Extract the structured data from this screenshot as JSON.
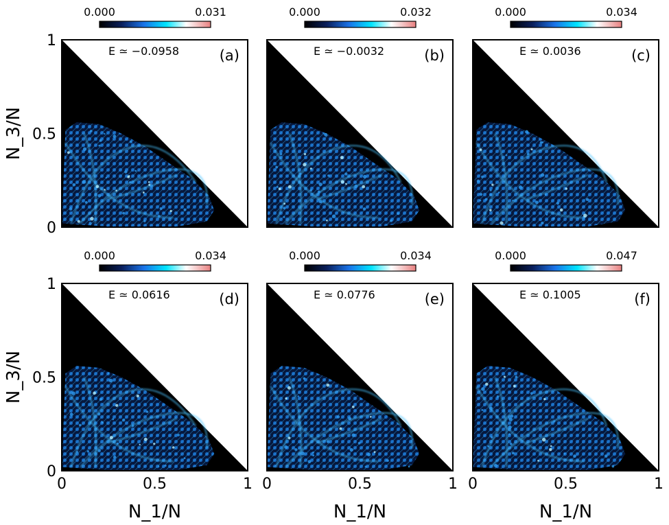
{
  "chart_data": {
    "type": "heatmap",
    "xlabel": "N_1/N",
    "ylabel": "N_3/N",
    "xlim": [
      0,
      1
    ],
    "ylim": [
      0,
      1
    ],
    "x_ticks": [
      "0",
      "0.5",
      "1"
    ],
    "y_ticks": [
      "0",
      "0.5",
      "1"
    ],
    "colormap": [
      "#000000",
      "#0a1f5c",
      "#1a73e8",
      "#00e5ff",
      "#ffffff",
      "#e88080"
    ],
    "panels": [
      {
        "label": "(a)",
        "energy": "E ≃ −0.0958",
        "colorbar_min": "0.000",
        "colorbar_max": "0.031"
      },
      {
        "label": "(b)",
        "energy": "E ≃ −0.0032",
        "colorbar_min": "0.000",
        "colorbar_max": "0.032"
      },
      {
        "label": "(c)",
        "energy": "E ≃ 0.0036",
        "colorbar_min": "0.000",
        "colorbar_max": "0.034"
      },
      {
        "label": "(d)",
        "energy": "E ≃ 0.0616",
        "colorbar_min": "0.000",
        "colorbar_max": "0.034"
      },
      {
        "label": "(e)",
        "energy": "E ≃ 0.0776",
        "colorbar_min": "0.000",
        "colorbar_max": "0.034"
      },
      {
        "label": "(f)",
        "energy": "E ≃ 0.1005",
        "colorbar_min": "0.000",
        "colorbar_max": "0.047"
      }
    ]
  }
}
